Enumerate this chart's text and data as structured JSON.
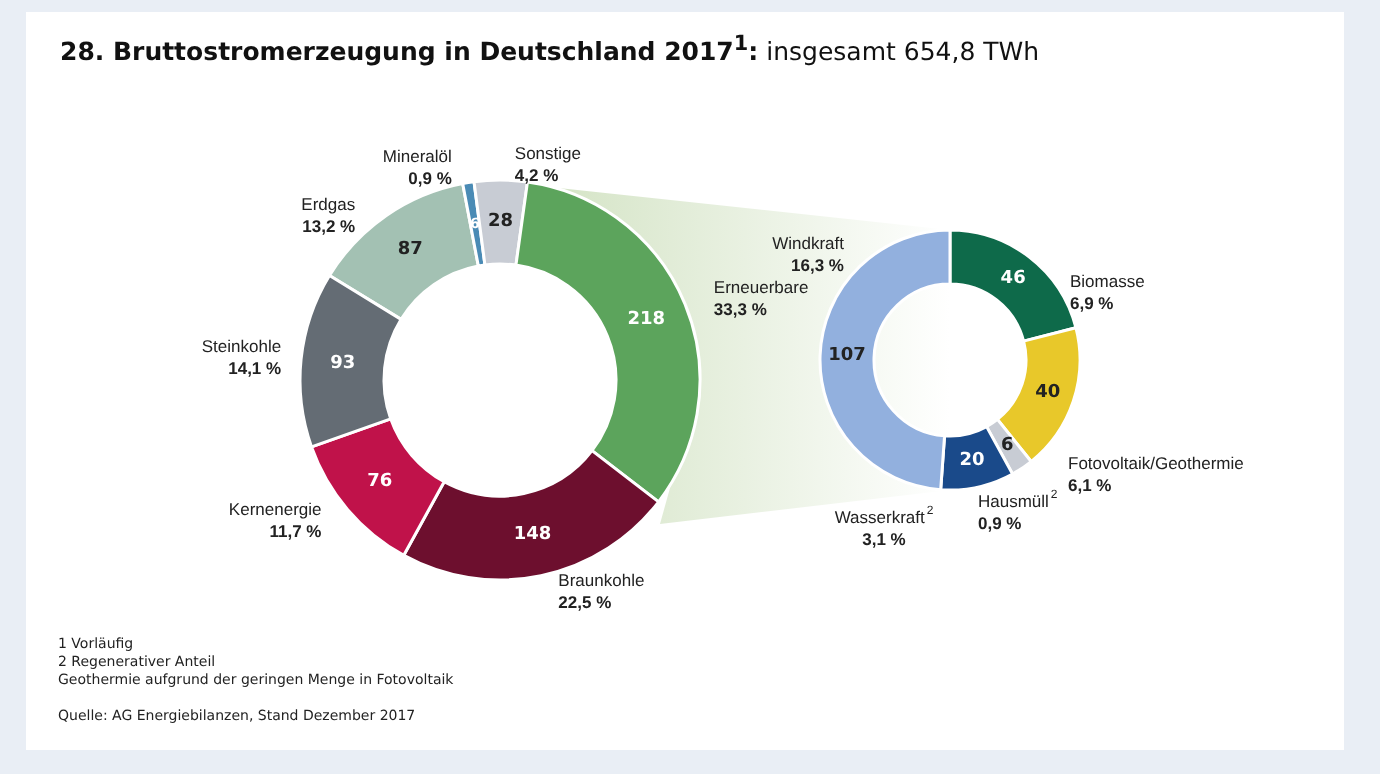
{
  "chart_data": [
    {
      "type": "donut",
      "title": "28. Bruttostromerzeugung in Deutschland 2017$^{1}$:",
      "subtitle": "insgesamt 654,8 TWh",
      "categories": [
        "Erdgas",
        "Mineralöl",
        "Sonstige",
        "Erneuerbare",
        "Braunkohle",
        "Kernenergie",
        "Steinkohle"
      ],
      "values": [
        87,
        6,
        28,
        218,
        148,
        76,
        93
      ],
      "colors": [
        "#a3c1b3",
        "#4a8bb5",
        "#c8ccd4",
        "#5ca45c",
        "#6d0f2e",
        "#c0124a",
        "#646c74"
      ],
      "data_labels": true,
      "legend": false,
      "annotations": [
        {
          "text": "13,2 %",
          "x": "Erdgas"
        },
        {
          "text": "0,9 %",
          "x": "Mineralöl"
        },
        {
          "text": "4,2 %",
          "x": "Sonstige"
        },
        {
          "text": "33,3 %",
          "x": "Erneuerbare"
        },
        {
          "text": "22,5 %",
          "x": "Braunkohle"
        },
        {
          "text": "11,7 %",
          "x": "Kernenergie"
        },
        {
          "text": "14,1 %",
          "x": "Steinkohle"
        },
        "1  Vorläufig",
        "2  Regenerativer Anteil",
        "Geothermie aufgrund der geringen Menge in Fotovoltaik",
        "Quelle: AG Energiebilanzen, Stand Dezember 2017"
      ]
    },
    {
      "type": "donut",
      "categories": [
        "Biomasse",
        "Fotovoltaik/Geothermie",
        "Hausmüll$^{2}$",
        "Wasserkraft$^{2}$",
        "Windkraft"
      ],
      "values": [
        46,
        40,
        6,
        20,
        107
      ],
      "colors": [
        "#0e6a4a",
        "#e8c82a",
        "#c8ccd4",
        "#1a4a8a",
        "#92b0de"
      ],
      "data_labels": true,
      "legend": false,
      "annotations": [
        {
          "text": "6,9 %",
          "x": "Biomasse"
        },
        {
          "text": "6,1 %",
          "x": "Fotovoltaik/Geothermie"
        },
        {
          "text": "0,9 %",
          "x": "Hausmüll$^{2}$"
        },
        {
          "text": "3,1 %",
          "x": "Wasserkraft$^{2}$"
        },
        {
          "text": "16,3 %",
          "x": "Windkraft"
        }
      ]
    }
  ]
}
